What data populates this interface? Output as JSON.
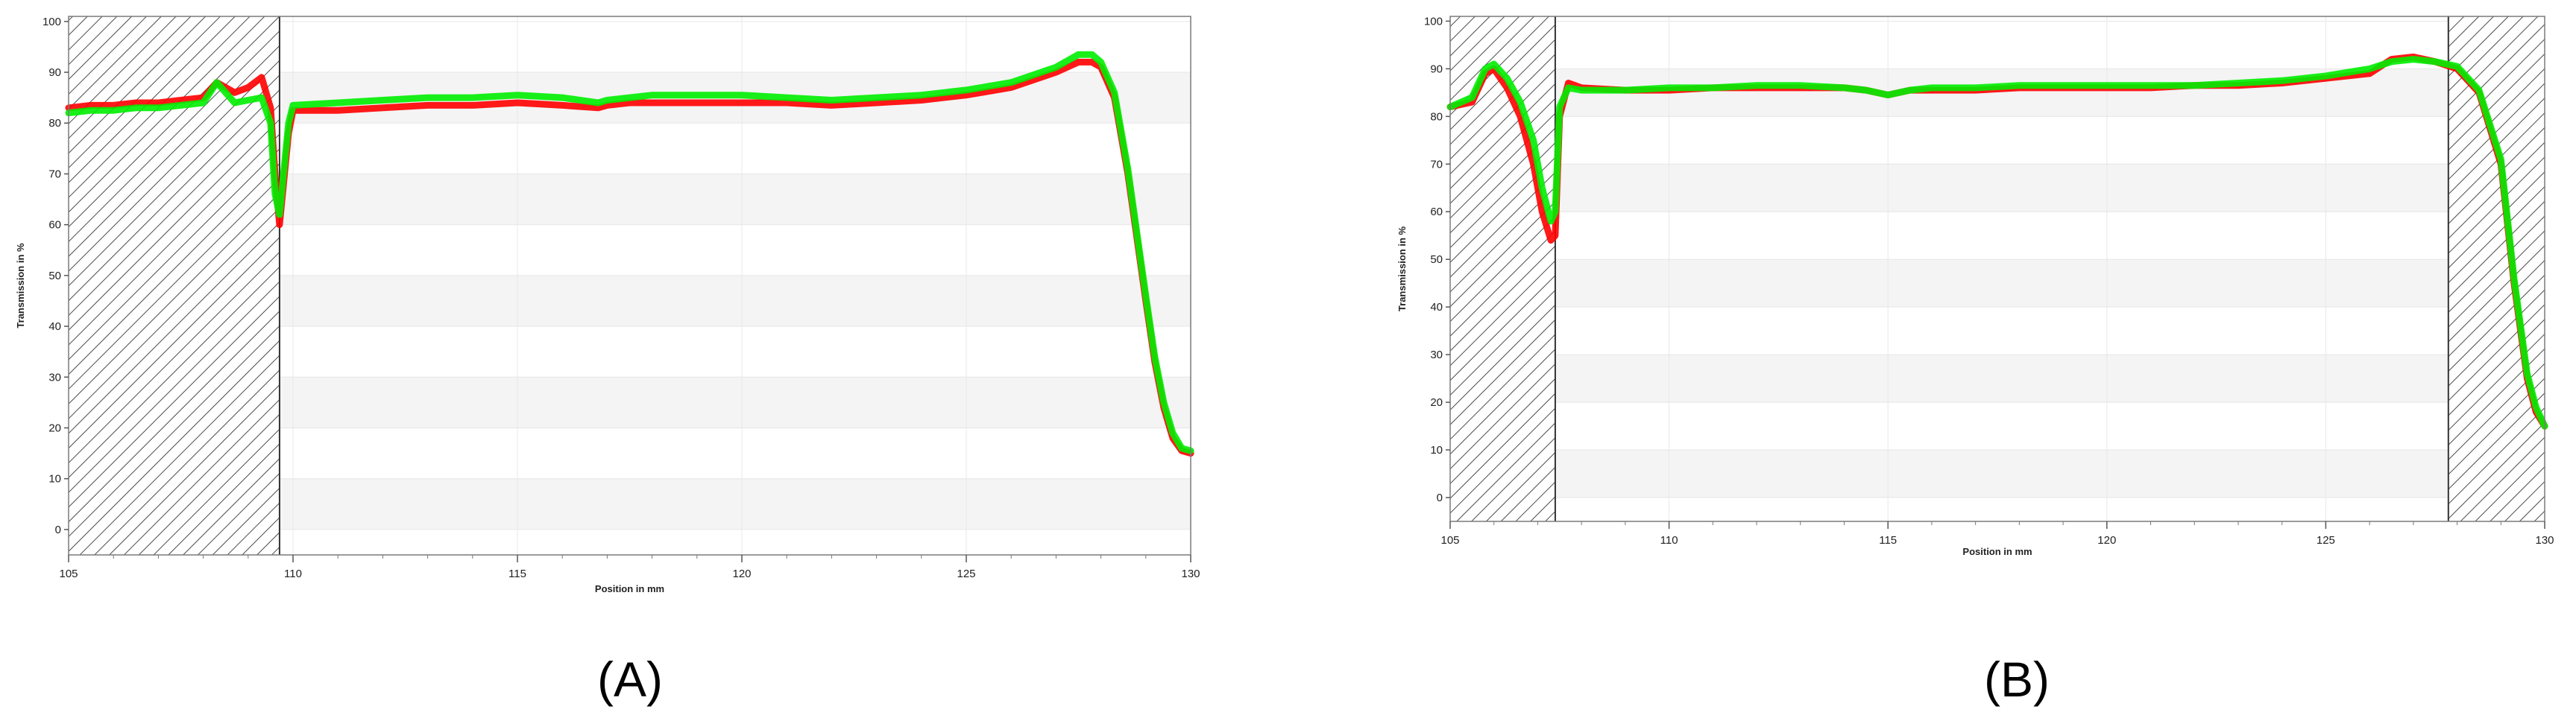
{
  "chart_data": [
    {
      "type": "line",
      "panel_label": "(A)",
      "xlabel": "Position in mm",
      "ylabel": "Transmission in %",
      "xlim": [
        105,
        130
      ],
      "ylim": [
        -5,
        101
      ],
      "x_ticks": [
        105,
        110,
        115,
        120,
        125,
        130
      ],
      "y_ticks": [
        0,
        10,
        20,
        30,
        40,
        50,
        60,
        70,
        80,
        90,
        100
      ],
      "hatched_regions": [
        [
          105,
          109.7
        ]
      ],
      "grid": true,
      "series": [
        {
          "color": "#ff0000",
          "x": [
            105,
            105.5,
            106,
            106.5,
            107,
            107.5,
            108,
            108.3,
            108.7,
            109,
            109.3,
            109.5,
            109.6,
            109.7,
            109.9,
            110,
            111,
            112,
            113,
            114,
            115,
            116,
            116.8,
            117,
            117.5,
            118,
            119,
            120,
            121,
            122,
            123,
            124,
            125,
            126,
            127,
            127.5,
            127.8,
            128,
            128.3,
            128.6,
            129,
            129.2,
            129.4,
            129.6,
            129.8,
            130
          ],
          "y": [
            83,
            83.5,
            83.5,
            84,
            84,
            84.5,
            85,
            88,
            86,
            87,
            89,
            83,
            70,
            60,
            78,
            82.5,
            82.5,
            83,
            83.5,
            83.5,
            84,
            83.5,
            83,
            83.5,
            84,
            84,
            84,
            84,
            84,
            83.5,
            84,
            84.5,
            85.5,
            87,
            90,
            92,
            92,
            91,
            85,
            70,
            45,
            33,
            24,
            18,
            15.5,
            15
          ]
        },
        {
          "color": "#00ee00",
          "x": [
            105,
            105.5,
            106,
            106.5,
            107,
            107.5,
            108,
            108.3,
            108.7,
            109,
            109.3,
            109.5,
            109.6,
            109.7,
            109.9,
            110,
            111,
            112,
            113,
            114,
            115,
            116,
            116.8,
            117,
            117.5,
            118,
            119,
            120,
            121,
            122,
            123,
            124,
            125,
            126,
            127,
            127.5,
            127.8,
            128,
            128.3,
            128.6,
            129,
            129.2,
            129.4,
            129.6,
            129.8,
            130
          ],
          "y": [
            82,
            82.5,
            82.5,
            83,
            83,
            83.5,
            84,
            88,
            84,
            84.5,
            85,
            80,
            66,
            62,
            80,
            83.5,
            84,
            84.5,
            85,
            85,
            85.5,
            85,
            84,
            84.5,
            85,
            85.5,
            85.5,
            85.5,
            85,
            84.5,
            85,
            85.5,
            86.5,
            88,
            91,
            93.5,
            93.5,
            92,
            86,
            71,
            46,
            34,
            25,
            19,
            16,
            15.5
          ]
        }
      ]
    },
    {
      "type": "line",
      "panel_label": "(B)",
      "xlabel": "Position in mm",
      "ylabel": "Transmission in %",
      "xlim": [
        105,
        130
      ],
      "ylim": [
        -5,
        101
      ],
      "x_ticks": [
        105,
        110,
        115,
        120,
        125,
        130
      ],
      "y_ticks": [
        0,
        10,
        20,
        30,
        40,
        50,
        60,
        70,
        80,
        90,
        100
      ],
      "hatched_regions": [
        [
          105,
          107.4
        ],
        [
          127.8,
          130
        ]
      ],
      "grid": true,
      "series": [
        {
          "color": "#ff0000",
          "x": [
            105,
            105.5,
            105.8,
            106,
            106.3,
            106.6,
            106.9,
            107.1,
            107.3,
            107.4,
            107.5,
            107.7,
            108,
            109,
            110,
            111,
            112,
            113,
            114,
            114.5,
            115,
            115.5,
            116,
            117,
            118,
            119,
            120,
            121,
            122,
            123,
            124,
            125,
            126,
            126.5,
            127,
            127.5,
            128,
            128.5,
            129,
            129.3,
            129.6,
            129.8,
            130
          ],
          "y": [
            82,
            83,
            89,
            90,
            86,
            80,
            70,
            60,
            54,
            55,
            80,
            87,
            86,
            85.5,
            85.5,
            86,
            86,
            86,
            86,
            85.5,
            84.5,
            85.5,
            85.5,
            85.5,
            86,
            86,
            86,
            86,
            86.5,
            86.5,
            87,
            88,
            89,
            92,
            92.5,
            91.5,
            90,
            85,
            70,
            45,
            25,
            18,
            15
          ]
        },
        {
          "color": "#00ee00",
          "x": [
            105,
            105.5,
            105.8,
            106,
            106.3,
            106.6,
            106.9,
            107.1,
            107.3,
            107.4,
            107.5,
            107.7,
            108,
            109,
            110,
            111,
            112,
            113,
            114,
            114.5,
            115,
            115.5,
            116,
            117,
            118,
            119,
            120,
            121,
            122,
            123,
            124,
            125,
            126,
            126.5,
            127,
            127.5,
            128,
            128.5,
            129,
            129.3,
            129.6,
            129.8,
            130
          ],
          "y": [
            82,
            84,
            90,
            91,
            88,
            83,
            75,
            65,
            58,
            60,
            82,
            86,
            85.5,
            85.5,
            86,
            86,
            86.5,
            86.5,
            86,
            85.5,
            84.5,
            85.5,
            86,
            86,
            86.5,
            86.5,
            86.5,
            86.5,
            86.5,
            87,
            87.5,
            88.5,
            90,
            91.5,
            92,
            91.5,
            90.5,
            85.5,
            71,
            46,
            26,
            19,
            15
          ]
        }
      ]
    }
  ]
}
